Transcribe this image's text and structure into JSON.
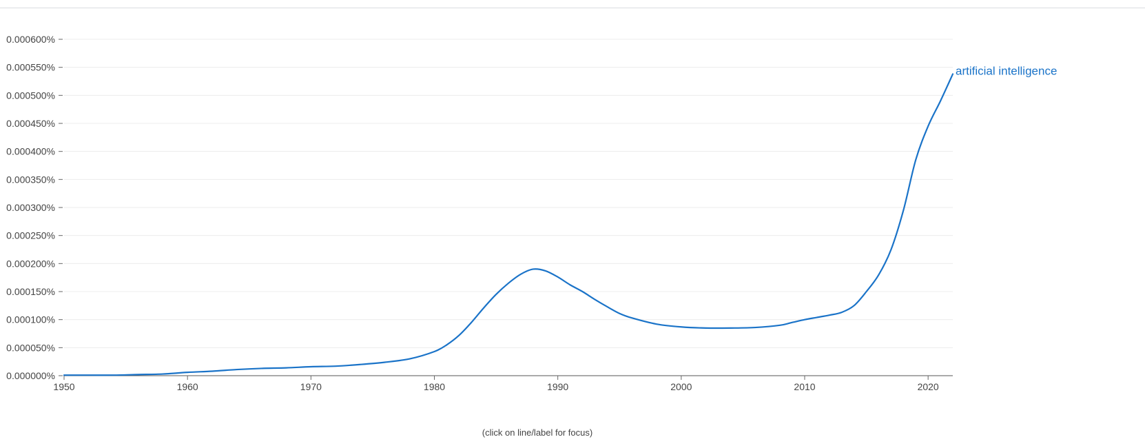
{
  "chart_data": {
    "type": "line",
    "title": "",
    "xlabel": "",
    "ylabel": "",
    "xlim": [
      1950,
      2022
    ],
    "ylim": [
      0,
      0.0006
    ],
    "grid": true,
    "x_ticks": [
      1950,
      1960,
      1970,
      1980,
      1990,
      2000,
      2010,
      2020
    ],
    "y_ticks": [
      0,
      5e-05,
      0.0001,
      0.00015,
      0.0002,
      0.00025,
      0.0003,
      0.00035,
      0.0004,
      0.00045,
      0.0005,
      0.00055,
      0.0006
    ],
    "y_tick_labels": [
      "0.000000%",
      "0.000050%",
      "0.000100%",
      "0.000150%",
      "0.000200%",
      "0.000250%",
      "0.000300%",
      "0.000350%",
      "0.000400%",
      "0.000450%",
      "0.000500%",
      "0.000550%",
      "0.000600%"
    ],
    "series": [
      {
        "name": "artificial intelligence",
        "color": "#1a73c8",
        "x": [
          1950,
          1952,
          1954,
          1956,
          1958,
          1960,
          1962,
          1964,
          1966,
          1968,
          1970,
          1972,
          1974,
          1976,
          1978,
          1980,
          1981,
          1982,
          1983,
          1984,
          1985,
          1986,
          1987,
          1988,
          1989,
          1990,
          1991,
          1992,
          1993,
          1994,
          1995,
          1996,
          1998,
          2000,
          2002,
          2004,
          2006,
          2008,
          2009,
          2010,
          2011,
          2012,
          2013,
          2014,
          2015,
          2016,
          2017,
          2018,
          2019,
          2020,
          2021,
          2022
        ],
        "y": [
          1e-06,
          1e-06,
          1e-06,
          2e-06,
          3e-06,
          6e-06,
          8e-06,
          1.1e-05,
          1.3e-05,
          1.4e-05,
          1.6e-05,
          1.7e-05,
          2e-05,
          2.4e-05,
          3e-05,
          4.3e-05,
          5.5e-05,
          7.2e-05,
          9.5e-05,
          0.000121,
          0.000145,
          0.000165,
          0.000181,
          0.00019,
          0.000187,
          0.000176,
          0.000162,
          0.00015,
          0.000136,
          0.000123,
          0.000111,
          0.000103,
          9.2e-05,
          8.7e-05,
          8.5e-05,
          8.5e-05,
          8.6e-05,
          9e-05,
          9.5e-05,
          0.0001,
          0.000104,
          0.000108,
          0.000113,
          0.000125,
          0.00015,
          0.00018,
          0.000225,
          0.000295,
          0.000385,
          0.000445,
          0.00049,
          0.000538
        ]
      }
    ],
    "footnote": "(click on line/label for focus)"
  }
}
